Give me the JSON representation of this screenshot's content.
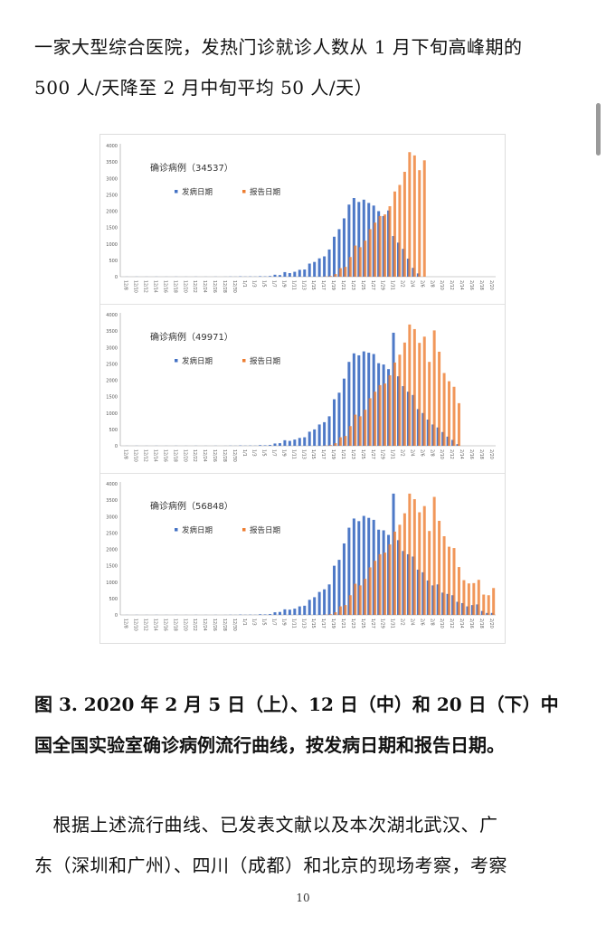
{
  "text_top": [
    "一家大型综合医院，发热门诊就诊人数从 1 月下旬高峰期的",
    "500 人/天降至 2 月中旬平均 50 人/天）"
  ],
  "caption": [
    "图 3. 2020 年 2 月 5 日（上）、12 日（中）和 20 日（下）中",
    "国全国实验室确诊病例流行曲线，按发病日期和报告日期。"
  ],
  "paragraph": [
    "　根据上述流行曲线、已发表文献以及本次湖北武汉、广",
    "东（深圳和广州）、四川（成都）和北京的现场考察，考察"
  ],
  "page_number": "10",
  "colors": {
    "onset": "#4472c4",
    "report": "#ed7d31"
  },
  "chart_data": [
    {
      "type": "bar",
      "title": "确诊病例（34537）",
      "ylim": [
        0,
        4000
      ],
      "yticks": [
        "0",
        "500",
        "1000",
        "1500",
        "2000",
        "2500",
        "3000",
        "3500",
        "4000"
      ],
      "grid": false,
      "legend_placement": "top-left",
      "xtick_labels": [
        "12/8",
        "12/10",
        "12/12",
        "12/14",
        "12/16",
        "12/18",
        "12/20",
        "12/22",
        "12/24",
        "12/26",
        "12/28",
        "12/30",
        "1/1",
        "1/3",
        "1/5",
        "1/7",
        "1/9",
        "1/11",
        "1/13",
        "1/15",
        "1/17",
        "1/19",
        "1/21",
        "1/23",
        "1/25",
        "1/27",
        "1/29",
        "1/31",
        "2/2",
        "2/4",
        "2/6",
        "2/8",
        "2/10",
        "2/12",
        "2/14",
        "2/16",
        "2/18",
        "2/20"
      ],
      "series": [
        {
          "name": "发病日期",
          "values": [
            0,
            2,
            0,
            3,
            0,
            2,
            0,
            3,
            0,
            2,
            0,
            3,
            0,
            2,
            0,
            3,
            0,
            2,
            0,
            3,
            0,
            2,
            5,
            3,
            10,
            5,
            8,
            5,
            15,
            10,
            20,
            60,
            50,
            140,
            110,
            150,
            210,
            220,
            400,
            450,
            560,
            620,
            830,
            1220,
            1450,
            1780,
            2200,
            2400,
            2280,
            2350,
            2250,
            2170,
            2000,
            1850,
            2020,
            1240,
            1040,
            850,
            550,
            270,
            100,
            0,
            0,
            0,
            0,
            0,
            0,
            0,
            0,
            0,
            0,
            0,
            0,
            0,
            0,
            0
          ]
        },
        {
          "name": "报告日期",
          "values": [
            0,
            0,
            0,
            0,
            0,
            0,
            0,
            0,
            0,
            0,
            0,
            0,
            0,
            0,
            0,
            0,
            0,
            0,
            0,
            0,
            0,
            0,
            0,
            0,
            0,
            0,
            0,
            0,
            0,
            0,
            0,
            0,
            0,
            0,
            0,
            0,
            0,
            0,
            0,
            0,
            0,
            10,
            20,
            80,
            260,
            300,
            600,
            950,
            900,
            1100,
            1450,
            1650,
            1850,
            1900,
            2150,
            2600,
            2800,
            3200,
            3800,
            3700,
            3250,
            3550,
            0,
            0,
            0,
            0,
            0,
            0,
            0,
            0,
            0,
            0,
            0,
            0,
            0,
            0
          ]
        }
      ]
    },
    {
      "type": "bar",
      "title": "确诊病例（49971）",
      "ylim": [
        0,
        4000
      ],
      "yticks": [
        "0",
        "500",
        "1000",
        "1500",
        "2000",
        "2500",
        "3000",
        "3500",
        "4000"
      ],
      "grid": false,
      "legend_placement": "top-left",
      "xtick_labels": [
        "12/8",
        "12/10",
        "12/12",
        "12/14",
        "12/16",
        "12/18",
        "12/20",
        "12/22",
        "12/24",
        "12/26",
        "12/28",
        "12/30",
        "1/1",
        "1/3",
        "1/5",
        "1/7",
        "1/9",
        "1/11",
        "1/13",
        "1/15",
        "1/17",
        "1/19",
        "1/21",
        "1/23",
        "1/25",
        "1/27",
        "1/29",
        "1/31",
        "2/2",
        "2/4",
        "2/6",
        "2/8",
        "2/10",
        "2/12",
        "2/14",
        "2/16",
        "2/18",
        "2/20"
      ],
      "series": [
        {
          "name": "发病日期",
          "values": [
            0,
            2,
            0,
            3,
            0,
            2,
            0,
            3,
            0,
            2,
            0,
            3,
            0,
            2,
            0,
            3,
            0,
            2,
            0,
            3,
            0,
            2,
            5,
            3,
            10,
            5,
            8,
            5,
            20,
            15,
            25,
            70,
            80,
            170,
            150,
            190,
            240,
            260,
            430,
            500,
            650,
            720,
            900,
            1420,
            1620,
            2050,
            2560,
            2820,
            2760,
            2880,
            2840,
            2800,
            2520,
            2480,
            2340,
            3450,
            2120,
            1820,
            1650,
            1550,
            1120,
            1000,
            800,
            650,
            560,
            420,
            280,
            180,
            50,
            0,
            0,
            0,
            0,
            0,
            0,
            0
          ]
        },
        {
          "name": "报告日期",
          "values": [
            0,
            0,
            0,
            0,
            0,
            0,
            0,
            0,
            0,
            0,
            0,
            0,
            0,
            0,
            0,
            0,
            0,
            0,
            0,
            0,
            0,
            0,
            0,
            0,
            0,
            0,
            0,
            0,
            0,
            0,
            0,
            0,
            0,
            0,
            0,
            0,
            0,
            0,
            0,
            0,
            0,
            10,
            20,
            80,
            260,
            300,
            600,
            950,
            900,
            1100,
            1450,
            1650,
            1850,
            1900,
            2150,
            2540,
            2780,
            3150,
            3700,
            3560,
            3140,
            3330,
            2560,
            3520,
            2870,
            2220,
            1970,
            1800,
            1300,
            0,
            0,
            0,
            0,
            0,
            0,
            0
          ]
        }
      ]
    },
    {
      "type": "bar",
      "title": "确诊病例（56848）",
      "ylim": [
        0,
        4000
      ],
      "yticks": [
        "0",
        "500",
        "1000",
        "1500",
        "2000",
        "2500",
        "3000",
        "3500",
        "4000"
      ],
      "grid": false,
      "legend_placement": "top-left",
      "xtick_labels": [
        "12/8",
        "12/10",
        "12/12",
        "12/14",
        "12/16",
        "12/18",
        "12/20",
        "12/22",
        "12/24",
        "12/26",
        "12/28",
        "12/30",
        "1/1",
        "1/3",
        "1/5",
        "1/7",
        "1/9",
        "1/11",
        "1/13",
        "1/15",
        "1/17",
        "1/19",
        "1/21",
        "1/23",
        "1/25",
        "1/27",
        "1/29",
        "1/31",
        "2/2",
        "2/4",
        "2/6",
        "2/8",
        "2/10",
        "2/12",
        "2/14",
        "2/16",
        "2/18",
        "2/20"
      ],
      "series": [
        {
          "name": "发病日期",
          "values": [
            0,
            2,
            0,
            3,
            0,
            2,
            0,
            3,
            0,
            2,
            0,
            3,
            0,
            2,
            0,
            3,
            0,
            2,
            0,
            3,
            0,
            2,
            5,
            3,
            10,
            5,
            8,
            5,
            20,
            15,
            25,
            80,
            90,
            170,
            160,
            190,
            260,
            280,
            460,
            540,
            700,
            780,
            930,
            1500,
            1680,
            2180,
            2660,
            2940,
            2860,
            3020,
            2960,
            2900,
            2600,
            2580,
            2440,
            3700,
            2280,
            1950,
            1850,
            1780,
            1380,
            1300,
            1050,
            900,
            930,
            680,
            640,
            600,
            400,
            360,
            260,
            300,
            320,
            120,
            60,
            60
          ]
        },
        {
          "name": "报告日期",
          "values": [
            0,
            0,
            0,
            0,
            0,
            0,
            0,
            0,
            0,
            0,
            0,
            0,
            0,
            0,
            0,
            0,
            0,
            0,
            0,
            0,
            0,
            0,
            0,
            0,
            0,
            0,
            0,
            0,
            0,
            0,
            0,
            0,
            0,
            0,
            0,
            0,
            0,
            0,
            0,
            0,
            0,
            10,
            20,
            80,
            260,
            300,
            600,
            950,
            900,
            1100,
            1450,
            1650,
            1850,
            1900,
            2150,
            2540,
            2750,
            3100,
            3700,
            3530,
            3130,
            3320,
            2560,
            3600,
            2870,
            2400,
            2080,
            2040,
            1460,
            1060,
            960,
            970,
            1070,
            620,
            600,
            820
          ]
        }
      ]
    }
  ]
}
